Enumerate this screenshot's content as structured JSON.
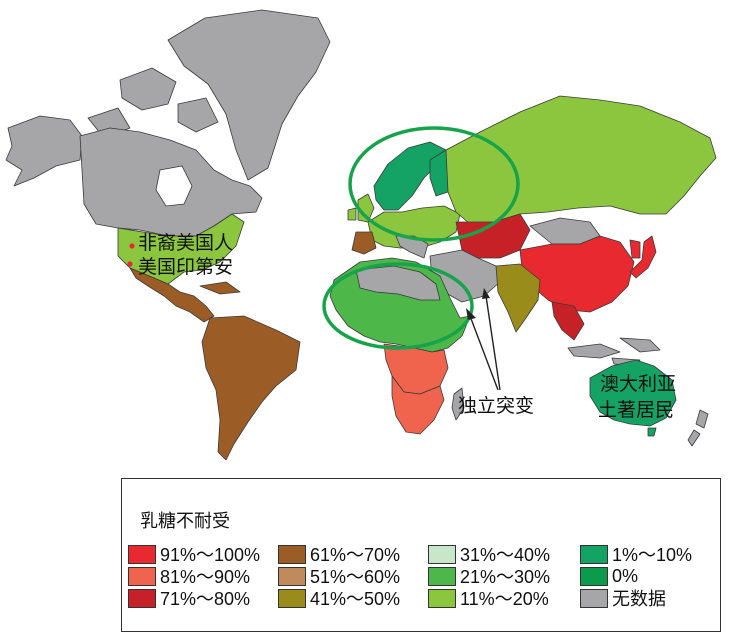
{
  "map": {
    "label_native_american": "非裔美国人",
    "label_native_indian": "美国印第安",
    "label_mutation": "独立突变",
    "label_aboriginal_line1": "澳大利亚",
    "label_aboriginal_line2": "土著居民"
  },
  "legend": {
    "title": "乳糖不耐受",
    "items": [
      {
        "label": "91%～100%",
        "color": "#e8292f"
      },
      {
        "label": "81%～90%",
        "color": "#f0644e"
      },
      {
        "label": "71%～80%",
        "color": "#c72128"
      },
      {
        "label": "61%～70%",
        "color": "#9c5c25"
      },
      {
        "label": "51%～60%",
        "color": "#c08a5c"
      },
      {
        "label": "41%～50%",
        "color": "#9a8c1a"
      },
      {
        "label": "31%～40%",
        "color": "#c8e6c9"
      },
      {
        "label": "21%～30%",
        "color": "#4db849"
      },
      {
        "label": "11%～20%",
        "color": "#8cc63f"
      },
      {
        "label": "1%～10%",
        "color": "#14a364"
      },
      {
        "label": "0%",
        "color": "#0c9a4d"
      },
      {
        "label": "无数据",
        "color": "#a6a6a8"
      }
    ]
  },
  "ring_color": "#17a34a"
}
